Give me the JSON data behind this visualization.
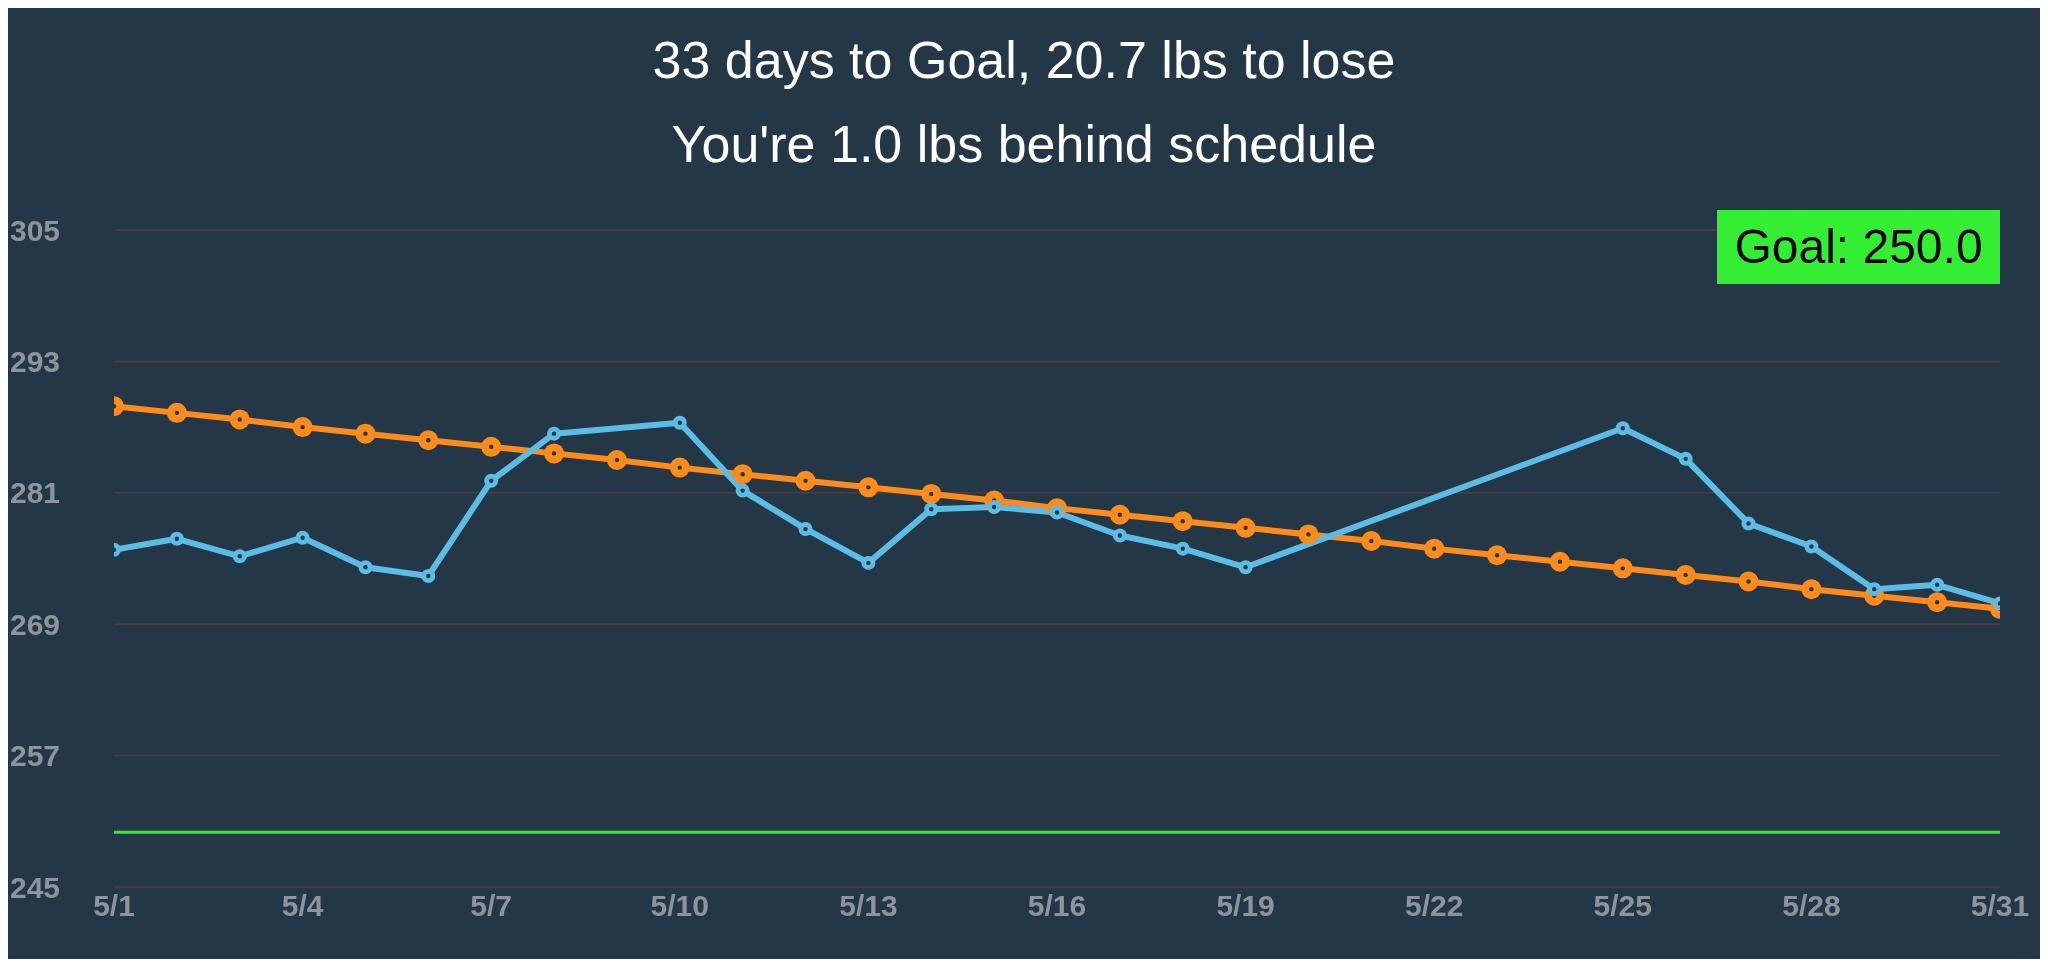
{
  "chart_data": {
    "type": "line",
    "title": "33 days to Goal, 20.7 lbs to lose",
    "subtitle": "You're 1.0 lbs behind schedule",
    "x": [
      "--05-01",
      "--05-02",
      "--05-03",
      "--05-04",
      "--05-05",
      "--05-06",
      "--05-07",
      "--05-08",
      "--05-09",
      "--05-10",
      "--05-11",
      "--05-12",
      "--05-13",
      "--05-14",
      "--05-15",
      "--05-16",
      "--05-17",
      "--05-18",
      "--05-19",
      "--05-20",
      "--05-21",
      "--05-22",
      "--05-23",
      "--05-24",
      "--05-25",
      "--05-26",
      "--05-27",
      "--05-28",
      "--05-29",
      "--05-30",
      "--05-31"
    ],
    "series": [
      {
        "color": "#ff8c1a",
        "values": [
          288.9,
          288.3,
          287.7,
          287.0,
          286.4,
          285.8,
          285.2,
          284.6,
          284.0,
          283.3,
          282.7,
          282.1,
          281.5,
          280.9,
          280.3,
          279.6,
          279.0,
          278.4,
          277.8,
          277.2,
          276.6,
          275.9,
          275.3,
          274.7,
          274.1,
          273.5,
          272.9,
          272.2,
          271.6,
          271.0,
          270.4
        ]
      },
      {
        "color": "#5bbde6",
        "x": [
          "--05-01",
          "--05-02",
          "--05-03",
          "--05-04",
          "--05-05",
          "--05-06",
          "--05-07",
          "--05-08",
          "--05-10",
          "--05-11",
          "--05-12",
          "--05-13",
          "--05-14",
          "--05-15",
          "--05-16",
          "--05-17",
          "--05-18",
          "--05-19",
          "--05-25",
          "--05-26",
          "--05-27",
          "--05-28",
          "--05-29",
          "--05-30",
          "--05-31"
        ],
        "values": [
          275.8,
          276.8,
          275.2,
          276.9,
          274.2,
          273.4,
          282.1,
          286.4,
          287.4,
          281.2,
          277.7,
          274.6,
          279.5,
          279.7,
          279.2,
          277.1,
          275.9,
          274.2,
          286.9,
          284.1,
          278.2,
          276.1,
          272.2,
          272.6,
          270.9
        ]
      }
    ],
    "xlim": [
      "--05-01",
      "--05-31"
    ],
    "xticks": [
      {
        "value": "--05-01",
        "label": "5/1"
      },
      {
        "value": "--05-04",
        "label": "5/4"
      },
      {
        "value": "--05-07",
        "label": "5/7"
      },
      {
        "value": "--05-10",
        "label": "5/10"
      },
      {
        "value": "--05-13",
        "label": "5/13"
      },
      {
        "value": "--05-16",
        "label": "5/16"
      },
      {
        "value": "--05-19",
        "label": "5/19"
      },
      {
        "value": "--05-22",
        "label": "5/22"
      },
      {
        "value": "--05-25",
        "label": "5/25"
      },
      {
        "value": "--05-28",
        "label": "5/28"
      },
      {
        "value": "--05-31",
        "label": "5/31"
      }
    ],
    "ylim": [
      245,
      305
    ],
    "yticks": [
      245,
      257,
      269,
      281,
      293,
      305
    ],
    "ref_lines": [
      {
        "axis": "y",
        "value": 250,
        "color": "#33ee33"
      }
    ],
    "annotations": [
      "Goal: 250.0"
    ],
    "grid": "y",
    "marker": "circle",
    "line_style": "solid"
  }
}
